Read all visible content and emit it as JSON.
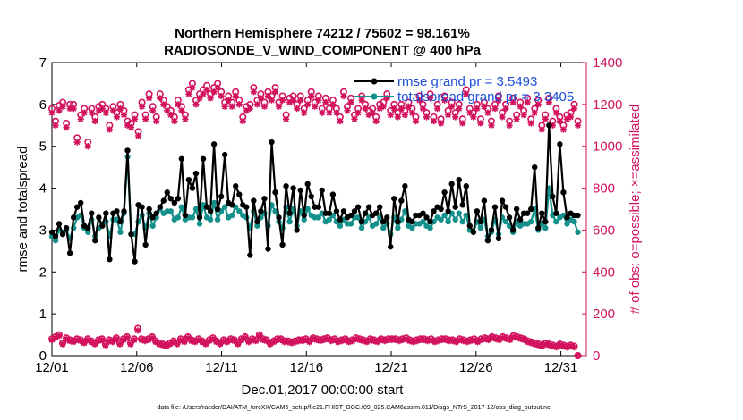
{
  "chart_data": {
    "type": "line",
    "title_line1": "Northern Hemisphere 74212 / 75602 = 98.161%",
    "title_line2": "RADIOSONDE_V_WIND_COMPONENT @ 400 hPa",
    "xlabel": "Dec.01,2017 00:00:00 start",
    "ylabel_left": "rmse and totalspread",
    "ylabel_right": "# of obs: o=possible; ×=assimilated",
    "footnote": "data file: /Users/raeder/DAI/ATM_forcXX/CAM6_setup/f.e21.FHIST_BGC.f09_025.CAM6assim.011/Diags_NTrS_2017-12/obs_diag_output.nc",
    "xlim": [
      0,
      31.5
    ],
    "ylim_left": [
      0,
      7
    ],
    "ylim_right": [
      0,
      1400
    ],
    "x_ticks": [
      0,
      5,
      10,
      15,
      20,
      25,
      30
    ],
    "x_tick_labels": [
      "12/01",
      "12/06",
      "12/11",
      "12/16",
      "12/21",
      "12/26",
      "12/31"
    ],
    "y_left_ticks": [
      "0",
      "1",
      "2",
      "3",
      "4",
      "5",
      "6",
      "7"
    ],
    "y_right_ticks": [
      "0",
      "200",
      "400",
      "600",
      "800",
      "1000",
      "1200",
      "1400"
    ],
    "colors": {
      "rmse": "#000000",
      "spread": "#14918a",
      "obs": "#d3125e",
      "axis_right": "#d3125e",
      "legend_text": "#1a4fd6"
    },
    "legend": [
      {
        "name": "rmse",
        "label": "rmse grand pr = 3.5493"
      },
      {
        "name": "spread",
        "label": "totalspread grand pr = 3.3405"
      }
    ],
    "series": [
      {
        "name": "rmse",
        "values": [
          2.95,
          2.85,
          3.15,
          2.9,
          3.05,
          2.45,
          3.3,
          3.55,
          3.65,
          3.1,
          3.05,
          3.4,
          2.75,
          3.3,
          3.1,
          3.4,
          2.3,
          3.4,
          3.45,
          3.2,
          3.45,
          4.9,
          2.9,
          2.25,
          3.6,
          3.55,
          2.65,
          3.5,
          3.3,
          3.4,
          3.55,
          3.7,
          3.9,
          3.75,
          3.65,
          3.75,
          4.7,
          3.35,
          4.2,
          4.0,
          4.35,
          3.3,
          4.7,
          3.55,
          3.45,
          5.05,
          3.5,
          3.8,
          4.8,
          3.65,
          3.6,
          4.05,
          3.85,
          3.6,
          3.55,
          2.4,
          3.7,
          3.2,
          3.45,
          3.75,
          2.55,
          5.1,
          3.9,
          3.3,
          2.65,
          4.05,
          3.4,
          4.0,
          3.0,
          3.95,
          3.35,
          4.1,
          3.8,
          3.55,
          3.55,
          3.95,
          3.4,
          3.4,
          3.85,
          3.45,
          3.25,
          3.45,
          3.3,
          3.35,
          3.45,
          3.55,
          3.2,
          3.4,
          3.55,
          3.35,
          3.4,
          3.55,
          3.2,
          3.3,
          2.6,
          3.75,
          3.2,
          3.7,
          4.05,
          3.25,
          3.2,
          3.35,
          3.35,
          3.4,
          3.3,
          3.2,
          3.45,
          3.55,
          3.5,
          3.9,
          3.45,
          4.1,
          3.55,
          4.2,
          3.6,
          4.05,
          3.1,
          2.95,
          3.45,
          3.2,
          3.7,
          2.75,
          3.0,
          3.55,
          2.8,
          3.7,
          3.55,
          3.3,
          3.0,
          3.5,
          3.25,
          3.4,
          3.4,
          3.5,
          4.5,
          3.05,
          3.4,
          3.2,
          5.5,
          3.8,
          3.4,
          5.05,
          3.9,
          3.3,
          3.4,
          3.35,
          3.35
        ]
      },
      {
        "name": "spread",
        "values": [
          2.85,
          2.75,
          3.0,
          2.95,
          3.0,
          2.8,
          3.05,
          3.3,
          3.35,
          3.05,
          2.95,
          3.25,
          2.85,
          3.05,
          3.15,
          3.2,
          2.85,
          3.25,
          3.25,
          2.95,
          3.4,
          4.75,
          2.9,
          2.9,
          3.2,
          3.35,
          3.05,
          3.4,
          3.1,
          3.3,
          3.5,
          3.4,
          3.45,
          3.45,
          3.25,
          3.3,
          3.55,
          3.25,
          3.3,
          3.3,
          3.5,
          3.15,
          3.6,
          3.3,
          3.25,
          3.65,
          3.25,
          3.45,
          3.55,
          3.3,
          3.35,
          3.55,
          3.45,
          3.35,
          3.3,
          3.05,
          3.45,
          3.1,
          3.3,
          3.4,
          3.1,
          3.6,
          3.45,
          3.2,
          3.05,
          3.55,
          3.2,
          3.5,
          3.1,
          3.45,
          3.25,
          3.5,
          3.35,
          3.3,
          3.3,
          3.4,
          3.2,
          3.25,
          3.35,
          3.2,
          3.1,
          3.25,
          3.15,
          3.15,
          3.3,
          3.3,
          3.05,
          3.2,
          3.3,
          3.1,
          3.15,
          3.3,
          3.05,
          3.15,
          2.9,
          3.3,
          3.05,
          3.25,
          3.45,
          3.1,
          3.05,
          3.15,
          3.15,
          3.2,
          3.1,
          3.05,
          3.2,
          3.3,
          3.25,
          3.35,
          3.2,
          3.4,
          3.25,
          3.4,
          3.2,
          3.35,
          3.0,
          2.95,
          3.2,
          3.05,
          3.25,
          2.85,
          2.95,
          3.25,
          2.9,
          3.3,
          3.2,
          3.1,
          2.95,
          3.2,
          3.1,
          3.15,
          3.15,
          3.2,
          3.5,
          3.0,
          3.15,
          3.05,
          4.0,
          3.35,
          3.2,
          3.3,
          3.35,
          3.15,
          3.25,
          3.2,
          2.95
        ]
      }
    ],
    "obs_possible": [
      1180,
      1120,
      1195,
      1210,
      1110,
      1200,
      1200,
      1040,
      1150,
      1180,
      1020,
      1180,
      1140,
      1190,
      1200,
      1180,
      1100,
      1190,
      1160,
      1200,
      1170,
      1120,
      1110,
      1150,
      1070,
      1210,
      1150,
      1250,
      1190,
      1140,
      1250,
      1220,
      1190,
      1170,
      1140,
      1220,
      1190,
      1150,
      1270,
      1300,
      1220,
      1250,
      1270,
      1290,
      1250,
      1280,
      1300,
      1260,
      1210,
      1240,
      1210,
      1260,
      1220,
      1140,
      1190,
      1200,
      1280,
      1220,
      1250,
      1210,
      1260,
      1240,
      1280,
      1210,
      1240,
      1150,
      1230,
      1240,
      1200,
      1240,
      1180,
      1220,
      1260,
      1210,
      1240,
      1180,
      1230,
      1180,
      1220,
      1180,
      1140,
      1260,
      1190,
      1230,
      1150,
      1180,
      1240,
      1200,
      1170,
      1180,
      1140,
      1200,
      1210,
      1250,
      1170,
      1200,
      1160,
      1200,
      1170,
      1210,
      1180,
      1140,
      1240,
      1200,
      1160,
      1250,
      1140,
      1200,
      1130,
      1240,
      1170,
      1210,
      1160,
      1200,
      1130,
      1270,
      1180,
      1160,
      1200,
      1130,
      1210,
      1180,
      1120,
      1200,
      1240,
      1160,
      1200,
      1120,
      1230,
      1150,
      1210,
      1170,
      1230,
      1130,
      1180,
      1220,
      1100,
      1150,
      1230,
      1120,
      1180,
      1140,
      1100,
      1150,
      1160,
      1200,
      1120
    ],
    "obs_assimilated": [
      1160,
      1100,
      1170,
      1190,
      1090,
      1180,
      1180,
      1020,
      1130,
      1160,
      1000,
      1160,
      1120,
      1170,
      1180,
      1160,
      1080,
      1170,
      1140,
      1180,
      1150,
      1100,
      1090,
      1130,
      1050,
      1190,
      1130,
      1230,
      1170,
      1120,
      1230,
      1200,
      1170,
      1150,
      1120,
      1200,
      1170,
      1130,
      1250,
      1280,
      1200,
      1230,
      1250,
      1270,
      1230,
      1260,
      1280,
      1240,
      1190,
      1220,
      1190,
      1240,
      1200,
      1120,
      1170,
      1180,
      1260,
      1200,
      1230,
      1190,
      1240,
      1220,
      1260,
      1190,
      1220,
      1130,
      1210,
      1220,
      1180,
      1220,
      1160,
      1200,
      1240,
      1190,
      1220,
      1160,
      1210,
      1160,
      1200,
      1160,
      1120,
      1240,
      1170,
      1210,
      1130,
      1160,
      1220,
      1180,
      1150,
      1160,
      1120,
      1180,
      1190,
      1230,
      1150,
      1180,
      1140,
      1180,
      1150,
      1190,
      1160,
      1120,
      1220,
      1180,
      1140,
      1230,
      1120,
      1180,
      1110,
      1220,
      1150,
      1190,
      1140,
      1180,
      1110,
      1250,
      1160,
      1140,
      1180,
      1110,
      1190,
      1160,
      1100,
      1180,
      1220,
      1140,
      1180,
      1100,
      1210,
      1130,
      1190,
      1150,
      1210,
      1110,
      1160,
      1200,
      1080,
      1130,
      1210,
      1100,
      1160,
      1120,
      1080,
      1130,
      1140,
      1180,
      1100
    ],
    "obs_low_possible": [
      80,
      90,
      100,
      60,
      85,
      75,
      70,
      80,
      75,
      65,
      80,
      70,
      60,
      75,
      80,
      55,
      75,
      70,
      85,
      60,
      80,
      90,
      60,
      80,
      130,
      80,
      75,
      80,
      90,
      70,
      60,
      55,
      50,
      60,
      70,
      60,
      80,
      70,
      90,
      75,
      70,
      80,
      70,
      60,
      75,
      85,
      70,
      60,
      75,
      70,
      80,
      75,
      60,
      80,
      90,
      70,
      80,
      75,
      100,
      80,
      75,
      60,
      70,
      80,
      80,
      70,
      70,
      65,
      70,
      75,
      75,
      80,
      70,
      85,
      80,
      75,
      80,
      85,
      75,
      80,
      70,
      75,
      80,
      70,
      75,
      85,
      80,
      75,
      70,
      80,
      75,
      70,
      80,
      75,
      80,
      80,
      80,
      75,
      80,
      85,
      75,
      70,
      75,
      80,
      80,
      75,
      80,
      70,
      75,
      80,
      80,
      75,
      75,
      70,
      80,
      75,
      70,
      75,
      80,
      70,
      80,
      85,
      80,
      90,
      85,
      80,
      90,
      85,
      80,
      95,
      90,
      85,
      80,
      70,
      65,
      60,
      55,
      50,
      60,
      55,
      50,
      45,
      55,
      50,
      45,
      50,
      45,
      0
    ],
    "obs_low_assimilated": [
      75,
      85,
      95,
      55,
      80,
      70,
      65,
      75,
      70,
      60,
      75,
      65,
      55,
      70,
      75,
      50,
      70,
      65,
      80,
      55,
      75,
      85,
      55,
      75,
      120,
      75,
      70,
      75,
      85,
      65,
      55,
      50,
      45,
      55,
      65,
      55,
      75,
      65,
      85,
      70,
      65,
      75,
      65,
      55,
      70,
      80,
      65,
      55,
      70,
      65,
      75,
      70,
      55,
      75,
      85,
      65,
      75,
      70,
      95,
      75,
      70,
      55,
      65,
      75,
      75,
      65,
      65,
      60,
      65,
      70,
      70,
      75,
      65,
      80,
      75,
      70,
      75,
      80,
      70,
      75,
      65,
      70,
      75,
      65,
      70,
      80,
      75,
      70,
      65,
      75,
      70,
      65,
      75,
      70,
      75,
      75,
      75,
      70,
      75,
      80,
      70,
      65,
      70,
      75,
      75,
      70,
      75,
      65,
      70,
      75,
      75,
      70,
      70,
      65,
      75,
      70,
      65,
      70,
      75,
      65,
      75,
      80,
      75,
      85,
      80,
      75,
      85,
      80,
      75,
      90,
      85,
      80,
      75,
      65,
      60,
      55,
      50,
      45,
      55,
      50,
      45,
      40,
      50,
      45,
      40,
      45,
      40,
      0
    ]
  }
}
